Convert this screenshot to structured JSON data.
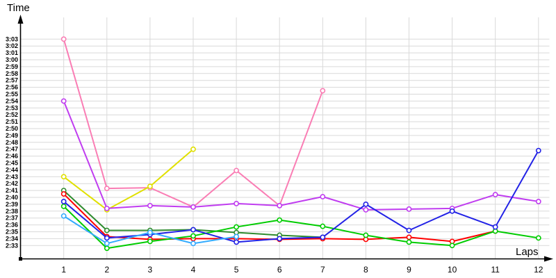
{
  "chart_data": {
    "type": "line",
    "title": "",
    "xlabel": "Laps",
    "ylabel": "Time",
    "legend": "none",
    "grid": true,
    "x_ticks": [
      "1",
      "2",
      "3",
      "4",
      "5",
      "6",
      "7",
      "8",
      "9",
      "10",
      "11",
      "12"
    ],
    "y_ticks": [
      "3:03",
      "3:02",
      "3:01",
      "3:00",
      "2:59",
      "2:58",
      "2:57",
      "2:56",
      "2:55",
      "2:54",
      "2:53",
      "2:52",
      "2:51",
      "2:50",
      "2:49",
      "2:48",
      "2:47",
      "2:46",
      "2:45",
      "2:44",
      "2:43",
      "2:42",
      "2:41",
      "2:40",
      "2:39",
      "2:38",
      "2:37",
      "2:36",
      "2:35",
      "2:34",
      "2:33"
    ],
    "value_format": "seconds after 2:00 (e.g. 183 = 3:03, 153 = 2:33)",
    "y_axis_range_seconds": [
      153,
      183
    ],
    "x_axis_range_laps": [
      1,
      12
    ],
    "grid_color": "#d9d9d9",
    "axis_color": "#000000",
    "marker_style": "open-circle-white-fill",
    "series": [
      {
        "name": "pink",
        "color": "#fa7db4",
        "start_lap": 1,
        "values": [
          183.0,
          161.3,
          161.4,
          158.6,
          163.9,
          158.8,
          175.5
        ]
      },
      {
        "name": "yellow",
        "color": "#e0e000",
        "start_lap": 1,
        "values": [
          163.0,
          158.2,
          161.6,
          167.0
        ]
      },
      {
        "name": "violet",
        "color": "#c03df0",
        "start_lap": 1,
        "values": [
          174.0,
          158.4,
          158.8,
          158.6,
          159.1,
          158.8,
          160.1,
          158.2,
          158.3,
          158.4,
          160.4,
          159.4
        ]
      },
      {
        "name": "dark-green",
        "color": "#2e8b2e",
        "start_lap": 1,
        "values": [
          161.0,
          155.2,
          155.2,
          155.3,
          154.9,
          154.5,
          154.2
        ]
      },
      {
        "name": "red",
        "color": "#ff0000",
        "start_lap": 1,
        "values": [
          160.5,
          154.3,
          153.9,
          154.0,
          154.0,
          153.9,
          154.0,
          153.9,
          154.2,
          153.6,
          155.1
        ]
      },
      {
        "name": "green",
        "color": "#00cc00",
        "start_lap": 1,
        "values": [
          158.7,
          152.6,
          153.6,
          154.4,
          155.7,
          156.7,
          155.8,
          154.5,
          153.5,
          153.0,
          155.1,
          154.1
        ]
      },
      {
        "name": "blue",
        "color": "#2222e6",
        "start_lap": 1,
        "values": [
          159.4,
          154.1,
          154.6,
          155.3,
          153.5,
          154.0,
          154.2,
          159.0,
          155.2,
          158.0,
          155.7,
          166.8
        ]
      },
      {
        "name": "cyan",
        "color": "#33aaff",
        "start_lap": 1,
        "values": [
          157.3,
          153.3,
          154.9,
          153.3,
          154.3
        ]
      }
    ]
  }
}
